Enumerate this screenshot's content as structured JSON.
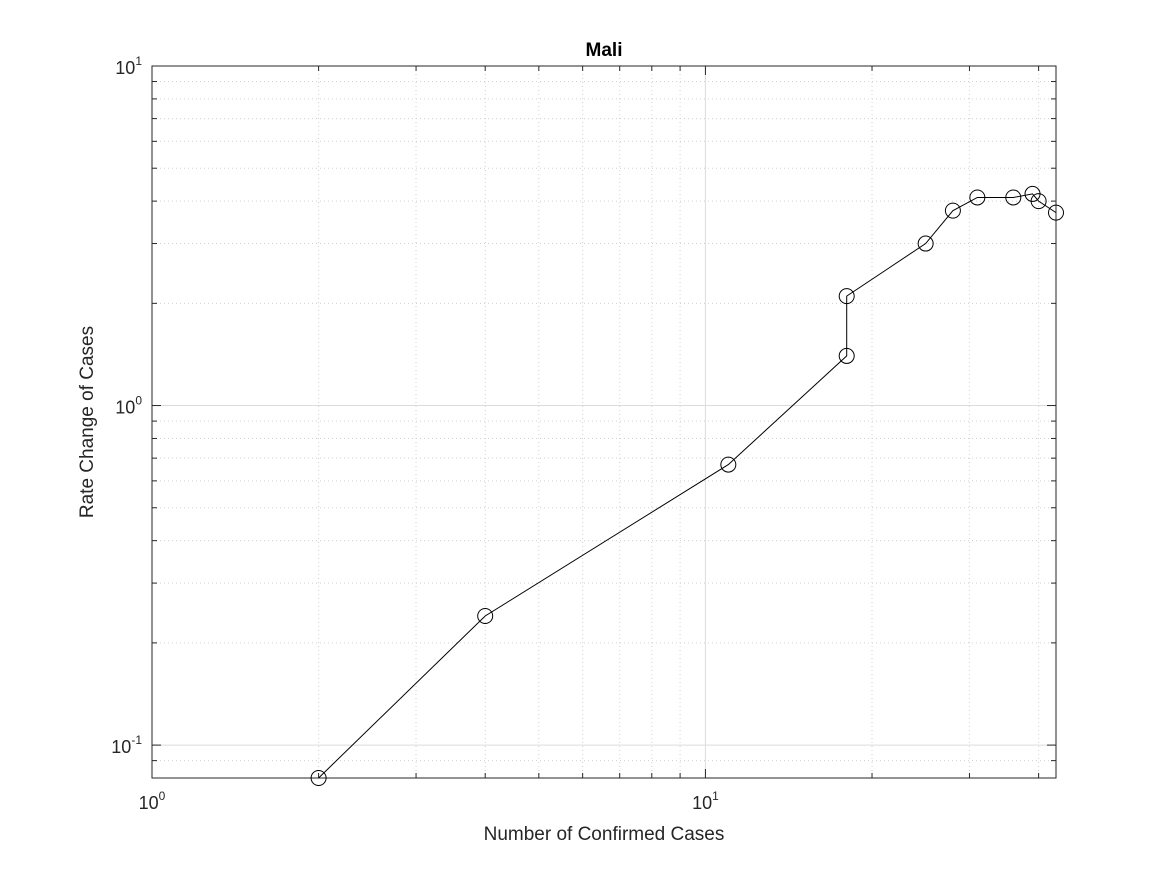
{
  "chart_data": {
    "type": "line",
    "title": "Mali",
    "xlabel": "Number of Confirmed Cases",
    "ylabel": "Rate Change of Cases",
    "x_scale": "log",
    "y_scale": "log",
    "xlim": [
      1,
      43
    ],
    "ylim": [
      0.08,
      10
    ],
    "grid": true,
    "marker": "circle",
    "line_color": "#000000",
    "x_ticks": [
      {
        "base": "10",
        "exp": "0"
      },
      {
        "base": "10",
        "exp": "1"
      }
    ],
    "y_ticks": [
      {
        "base": "10",
        "exp": "-1"
      },
      {
        "base": "10",
        "exp": "0"
      },
      {
        "base": "10",
        "exp": "1"
      }
    ],
    "series": [
      {
        "x": [
          2,
          4,
          11,
          18,
          18,
          25,
          28,
          31,
          36,
          39,
          40,
          43
        ],
        "y": [
          0.08,
          0.24,
          0.67,
          1.4,
          2.1,
          3.0,
          3.75,
          4.1,
          4.1,
          4.2,
          4.0,
          3.7
        ]
      }
    ]
  }
}
